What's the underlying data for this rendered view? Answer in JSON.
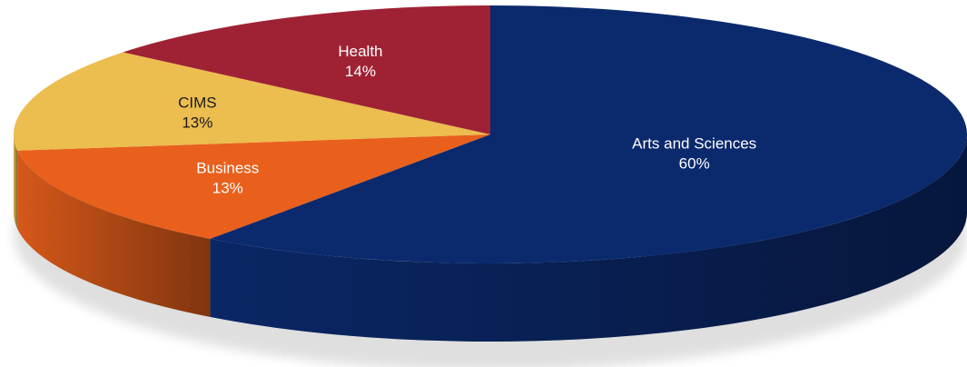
{
  "chart_data": {
    "type": "pie",
    "style": "3d",
    "title": "",
    "slices": [
      {
        "label": "Arts and Sciences",
        "value": 60,
        "display": "60%",
        "color": "#0b2a6e",
        "text_color": "#ffffff"
      },
      {
        "label": "Business",
        "value": 13,
        "display": "13%",
        "color": "#e8601c",
        "text_color": "#ffffff"
      },
      {
        "label": "CIMS",
        "value": 13,
        "display": "13%",
        "color": "#ecbd4f",
        "text_color": "#1a1a1a"
      },
      {
        "label": "Health",
        "value": 14,
        "display": "14%",
        "color": "#9e2233",
        "text_color": "#ffffff"
      }
    ]
  }
}
